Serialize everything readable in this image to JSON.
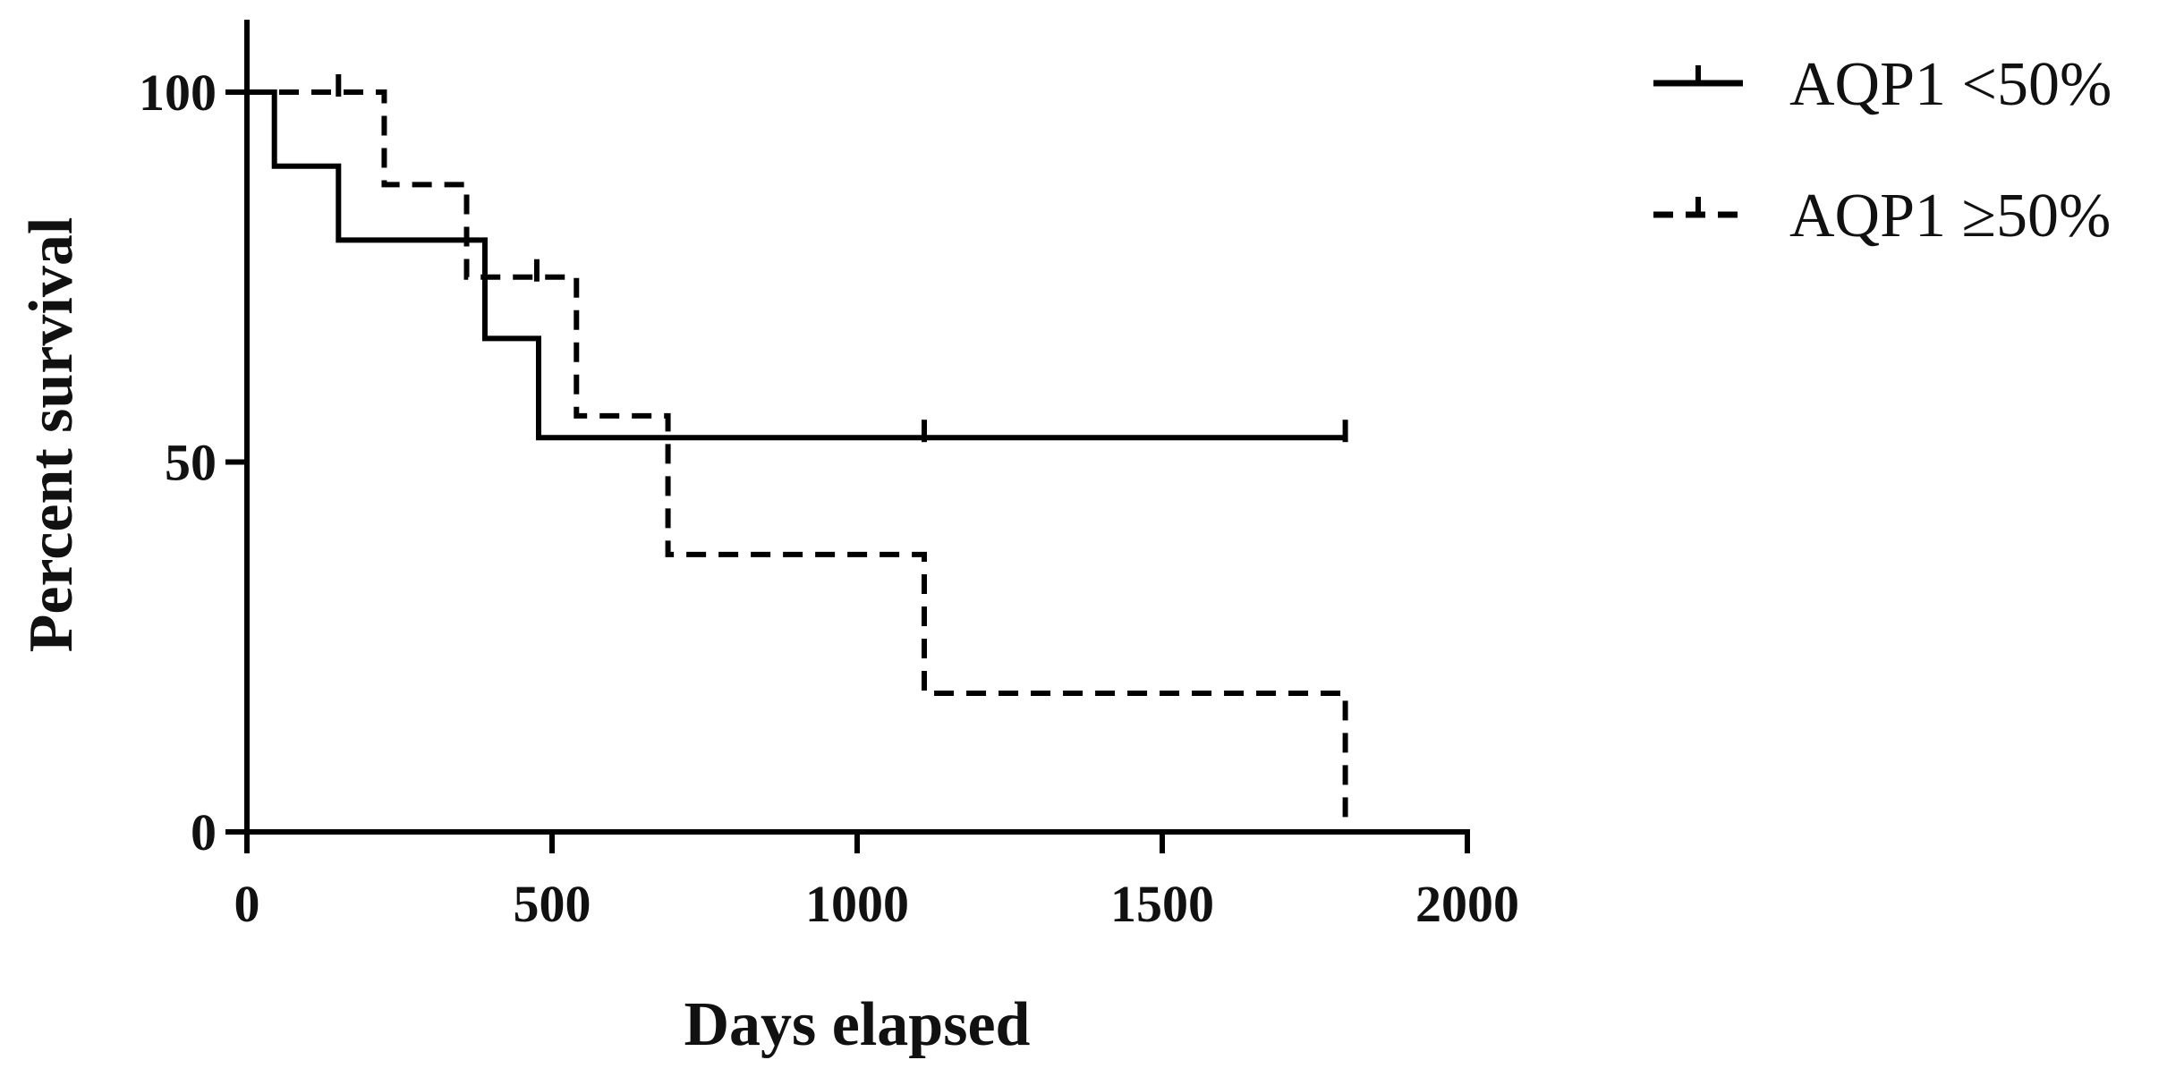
{
  "chart_data": {
    "type": "line",
    "xlabel": "Days elapsed",
    "ylabel": "Percent survival",
    "xlim": [
      0,
      2000
    ],
    "ylim": [
      0,
      100
    ],
    "xticks": [
      0,
      500,
      1000,
      1500,
      2000
    ],
    "yticks": [
      0,
      50,
      100
    ],
    "xtick_labels": [
      "0",
      "500",
      "1000",
      "1500",
      "2000"
    ],
    "ytick_labels": [
      "0",
      "50",
      "100"
    ],
    "grid": false,
    "legend_position": "top-right",
    "line_color": "#000000",
    "series": [
      {
        "name": "AQP1 <50%",
        "style": "solid",
        "steps": [
          [
            0,
            100
          ],
          [
            45,
            90
          ],
          [
            150,
            80
          ],
          [
            390,
            66.7
          ],
          [
            478,
            53.3
          ],
          [
            1800,
            53.3
          ]
        ],
        "censored": [
          [
            1110,
            53.3
          ],
          [
            1800,
            53.3
          ]
        ]
      },
      {
        "name": "AQP1 ≥50%",
        "style": "dashed",
        "steps": [
          [
            0,
            100
          ],
          [
            225,
            87.5
          ],
          [
            360,
            75
          ],
          [
            540,
            56.25
          ],
          [
            690,
            37.5
          ],
          [
            1110,
            18.75
          ],
          [
            1800,
            0
          ]
        ],
        "censored": [
          [
            150,
            100
          ],
          [
            475,
            75
          ]
        ]
      }
    ]
  }
}
